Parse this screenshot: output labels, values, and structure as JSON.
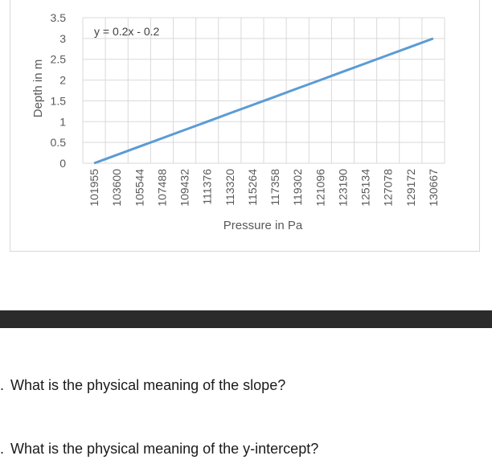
{
  "chart_data": {
    "type": "line",
    "title": "",
    "xlabel": "Pressure in Pa",
    "ylabel": "Depth in m",
    "trendline_label": "y = 0.2x - 0.2",
    "categories": [
      "101955",
      "103600",
      "105544",
      "107488",
      "109432",
      "111376",
      "113320",
      "115264",
      "117358",
      "119302",
      "121096",
      "123190",
      "125134",
      "127078",
      "129172",
      "130667"
    ],
    "yticks": [
      "0",
      "0.5",
      "1",
      "1.5",
      "2",
      "2.5",
      "3",
      "3.5"
    ],
    "ylim": [
      0,
      3.5
    ],
    "grid": true,
    "series": [
      {
        "values": [
          0,
          0.2,
          0.4,
          0.6,
          0.8,
          1.0,
          1.2,
          1.4,
          1.6,
          1.8,
          2.0,
          2.2,
          2.4,
          2.6,
          2.8,
          3.0
        ],
        "color": "#5b9bd5"
      }
    ]
  },
  "questions": {
    "q1_number": ".",
    "q1_text": "What is the physical meaning of the slope?",
    "q2_number": ".",
    "q2_text": "What is the physical meaning of the y-intercept?"
  }
}
